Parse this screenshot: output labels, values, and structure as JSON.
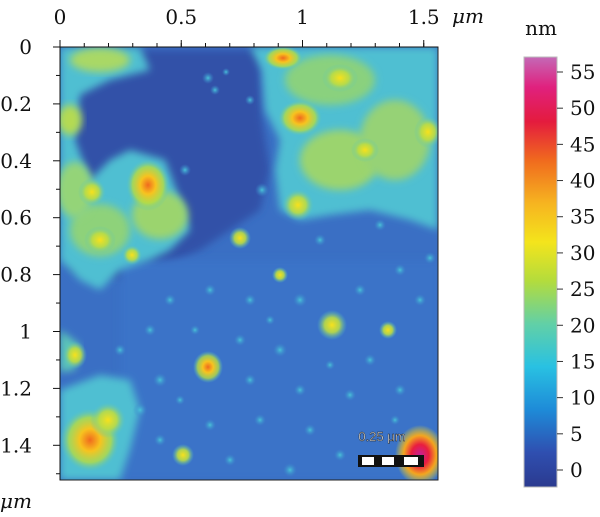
{
  "figure": {
    "x_unit": "μm",
    "y_unit": "μm",
    "x_ticks": [
      "0",
      "0.5",
      "1",
      "1.5"
    ],
    "y_ticks": [
      "0",
      "0.2",
      "0.4",
      "0.6",
      "0.8",
      "1",
      "1.2",
      "1.4"
    ],
    "x_range": [
      0,
      1.6
    ],
    "y_range": [
      0,
      1.55
    ],
    "scale_bar_label": "0.25 μm"
  },
  "colorbar": {
    "unit": "nm",
    "range": [
      -3,
      58
    ],
    "ticks": [
      "55",
      "50",
      "45",
      "40",
      "35",
      "30",
      "25",
      "20",
      "15",
      "10",
      "5",
      "0"
    ],
    "colors": [
      "#313695",
      "#2a5bb0",
      "#1f8fd6",
      "#2bc0e0",
      "#5fd0a8",
      "#b8dc3a",
      "#f5e21c",
      "#f8a020",
      "#ef3b1f",
      "#e0186e",
      "#c04fae"
    ]
  }
}
